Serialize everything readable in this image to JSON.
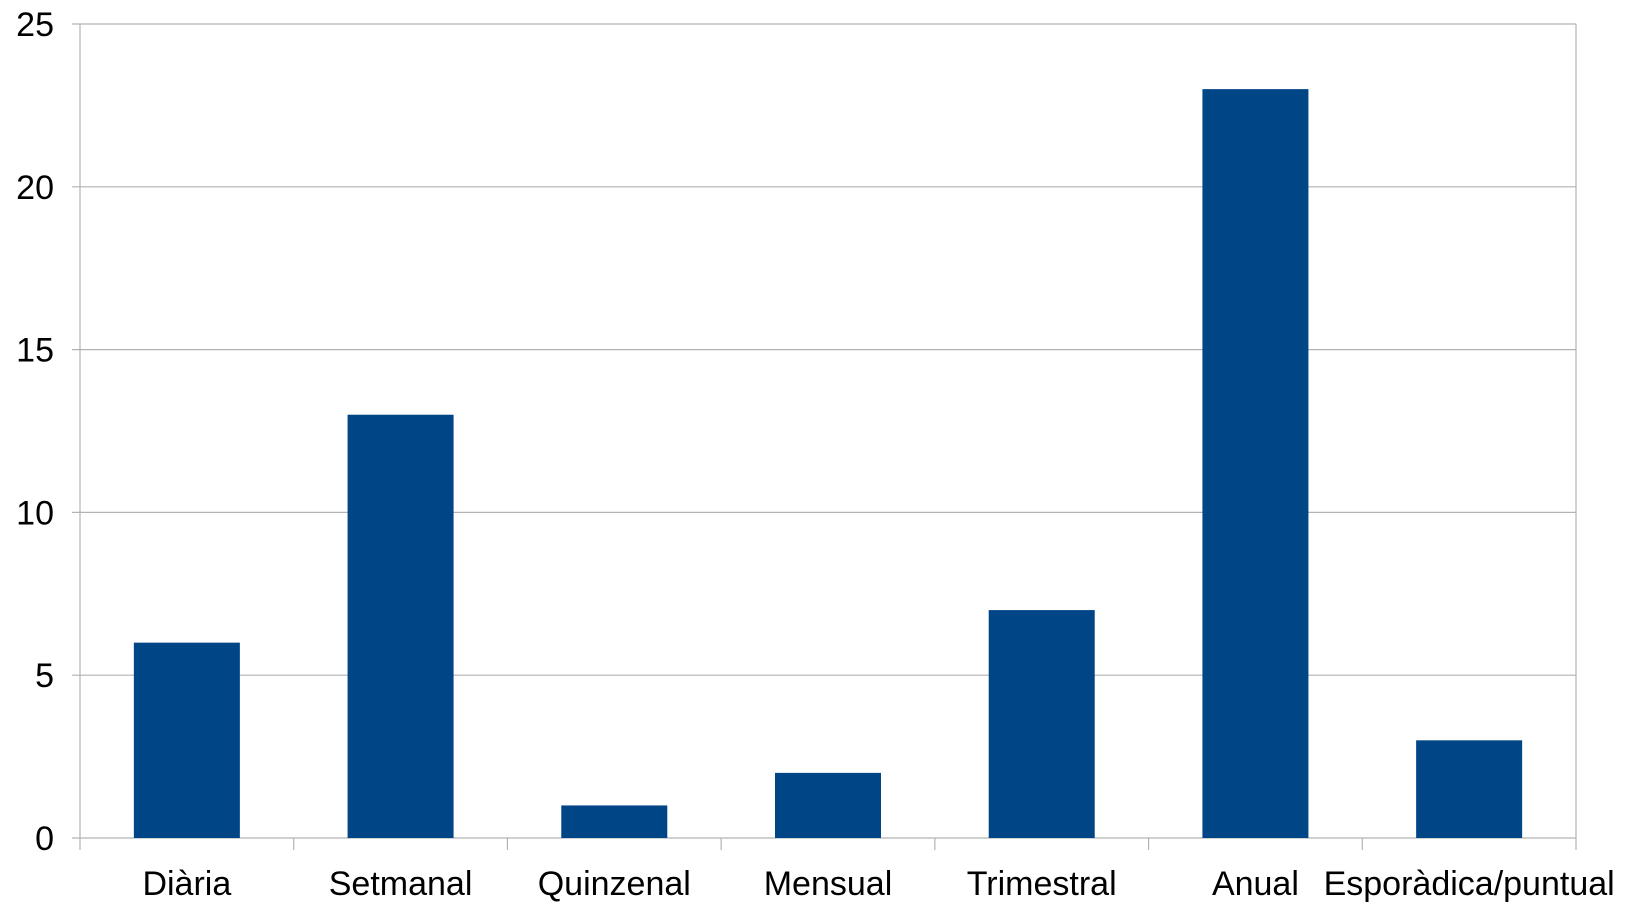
{
  "chart_data": {
    "type": "bar",
    "title": "",
    "xlabel": "",
    "ylabel": "",
    "categories": [
      "Diària",
      "Setmanal",
      "Quinzenal",
      "Mensual",
      "Trimestral",
      "Anual",
      "Esporàdica/puntual"
    ],
    "values": [
      6,
      13,
      1,
      2,
      7,
      23,
      3
    ],
    "ylim": [
      0,
      25
    ],
    "yticks": [
      "0",
      "5",
      "10",
      "15",
      "20",
      "25"
    ],
    "grid": true,
    "legend": "none",
    "colors": {
      "bar": "#004586",
      "grid": "#b3b3b3",
      "axis": "#b3b3b3",
      "text": "#000000"
    }
  }
}
